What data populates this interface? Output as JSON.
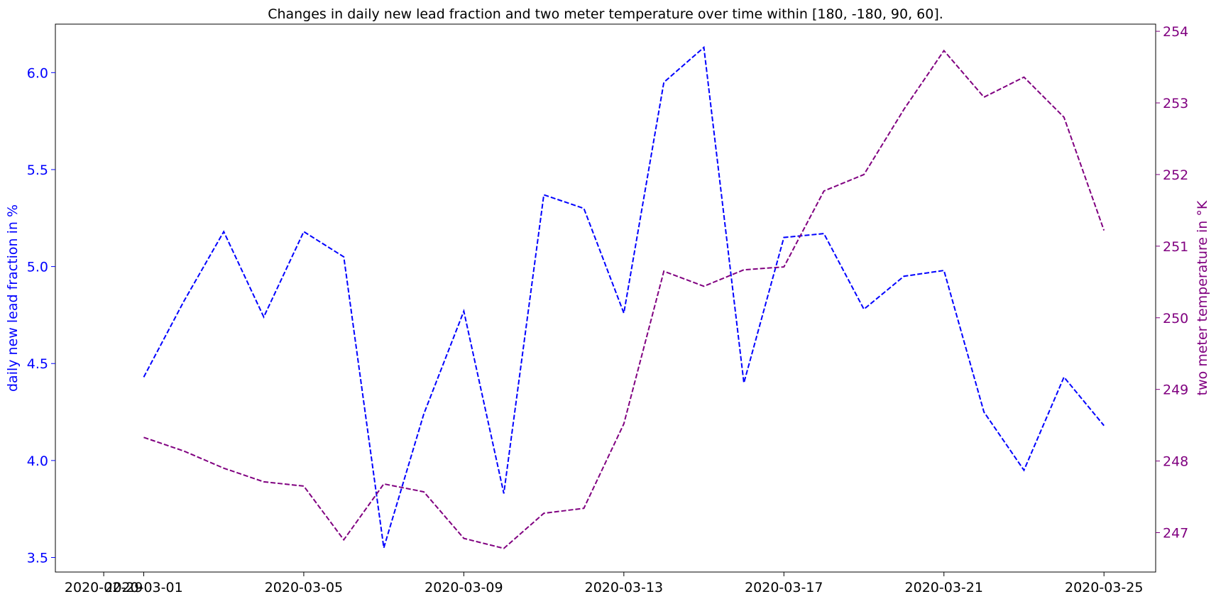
{
  "chart_data": {
    "type": "line",
    "title": "Changes in daily new lead fraction and two meter temperature over time within [180, -180, 90, 60].",
    "x": [
      "2020-03-01",
      "2020-03-02",
      "2020-03-03",
      "2020-03-04",
      "2020-03-05",
      "2020-03-06",
      "2020-03-07",
      "2020-03-08",
      "2020-03-09",
      "2020-03-10",
      "2020-03-11",
      "2020-03-12",
      "2020-03-13",
      "2020-03-14",
      "2020-03-15",
      "2020-03-16",
      "2020-03-17",
      "2020-03-18",
      "2020-03-19",
      "2020-03-20",
      "2020-03-21",
      "2020-03-22",
      "2020-03-23",
      "2020-03-24",
      "2020-03-25"
    ],
    "x_ticks": [
      "2020-02-29",
      "2020-03-01",
      "2020-03-05",
      "2020-03-09",
      "2020-03-13",
      "2020-03-17",
      "2020-03-21",
      "2020-03-25"
    ],
    "xlim": [
      "2020-02-27T19:00",
      "2020-03-26T07:00"
    ],
    "series": [
      {
        "axis": "left",
        "color": "#0000ff",
        "linestyle": "dashed",
        "values": [
          4.43,
          4.82,
          5.18,
          4.74,
          5.18,
          5.05,
          3.55,
          4.24,
          4.77,
          3.83,
          5.37,
          5.3,
          4.76,
          5.95,
          6.13,
          4.4,
          5.15,
          5.17,
          4.78,
          4.95,
          4.98,
          4.25,
          3.95,
          4.43,
          4.18
        ]
      },
      {
        "axis": "right",
        "color": "#800080",
        "linestyle": "dashed",
        "values": [
          248.33,
          248.14,
          247.9,
          247.71,
          247.65,
          246.9,
          247.68,
          247.57,
          246.92,
          246.78,
          247.27,
          247.34,
          248.52,
          250.65,
          250.44,
          250.67,
          250.71,
          251.77,
          252.0,
          252.91,
          253.73,
          253.08,
          253.36,
          252.8,
          251.22
        ]
      }
    ],
    "ylabel_left": "daily new lead fraction in %",
    "ylabel_right": "two meter temperature in °K",
    "ylim_left": [
      3.425,
      6.25
    ],
    "ylim_right": [
      246.45,
      254.1
    ],
    "yticks_left": [
      "3.5",
      "4.0",
      "4.5",
      "5.0",
      "5.5",
      "6.0"
    ],
    "yticks_right": [
      "247",
      "248",
      "249",
      "250",
      "251",
      "252",
      "253",
      "254"
    ],
    "left_axis_color": "#0000ff",
    "right_axis_color": "#800080",
    "grid": false,
    "legend": "none"
  }
}
